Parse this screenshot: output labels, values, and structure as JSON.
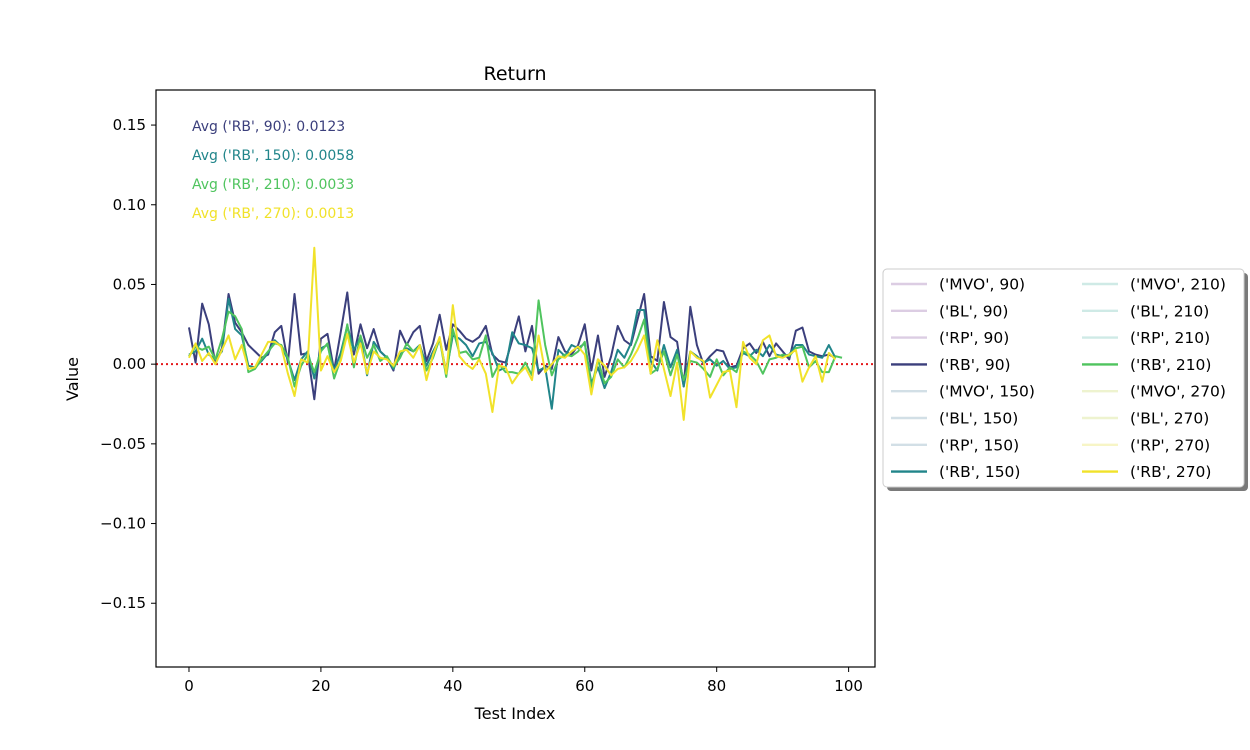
{
  "chart_data": {
    "type": "line",
    "title": "Return",
    "xlabel": "Test Index",
    "ylabel": "Value",
    "xlim": [
      -5,
      104
    ],
    "ylim": [
      -0.19,
      0.172
    ],
    "xticks": [
      0,
      20,
      40,
      60,
      80,
      100
    ],
    "xtick_labels": [
      "0",
      "20",
      "40",
      "60",
      "80",
      "100"
    ],
    "yticks": [
      0.15,
      0.1,
      0.05,
      0.0,
      -0.05,
      -0.1,
      -0.15
    ],
    "ytick_labels": [
      "0.15",
      "0.10",
      "0.05",
      "0.00",
      "−0.05",
      "−0.10",
      "−0.15"
    ],
    "grid": false,
    "legend_placement": "right, outside plot area, two columns",
    "zero_line": {
      "y": 0,
      "color": "#e41a1c",
      "style": "dotted"
    },
    "annotations": [
      {
        "text": "Avg ('RB', 90): 0.0123",
        "color": "#3b3f7c"
      },
      {
        "text": "Avg ('RB', 150): 0.0058",
        "color": "#21858a"
      },
      {
        "text": "Avg ('RB', 210): 0.0033",
        "color": "#4fc45e"
      },
      {
        "text": "Avg ('RB', 270): 0.0013",
        "color": "#f1e22a"
      }
    ],
    "legend": [
      {
        "label": "('MVO', 90)",
        "color": "#dccde3"
      },
      {
        "label": "('BL', 90)",
        "color": "#dccde3"
      },
      {
        "label": "('RP', 90)",
        "color": "#dccde3"
      },
      {
        "label": "('RB', 90)",
        "color": "#3b3f7c"
      },
      {
        "label": "('MVO', 150)",
        "color": "#d2dfe6"
      },
      {
        "label": "('BL', 150)",
        "color": "#d2dfe6"
      },
      {
        "label": "('RP', 150)",
        "color": "#d2dfe6"
      },
      {
        "label": "('RB', 150)",
        "color": "#21858a"
      },
      {
        "label": "('MVO', 210)",
        "color": "#cfeae6"
      },
      {
        "label": "('BL', 210)",
        "color": "#cfeae6"
      },
      {
        "label": "('RP', 210)",
        "color": "#cfeae6"
      },
      {
        "label": "('RB', 210)",
        "color": "#4fc45e"
      },
      {
        "label": "('MVO', 270)",
        "color": "#eef3cf"
      },
      {
        "label": "('BL', 270)",
        "color": "#eef3cf"
      },
      {
        "label": "('RP', 270)",
        "color": "#f7f5c6"
      },
      {
        "label": "('RB', 270)",
        "color": "#f1e22a"
      }
    ],
    "series": [
      {
        "name": "('RB', 90)",
        "color": "#3b3f7c",
        "values": [
          0.023,
          0.001,
          0.038,
          0.025,
          0.0,
          0.01,
          0.044,
          0.026,
          0.02,
          0.012,
          0.008,
          0.004,
          0.006,
          0.02,
          0.024,
          0.001,
          0.044,
          0.006,
          0.007,
          -0.022,
          0.016,
          0.019,
          -0.004,
          0.02,
          0.045,
          0.006,
          0.025,
          0.01,
          0.022,
          0.008,
          0.004,
          -0.004,
          0.021,
          0.012,
          0.02,
          0.024,
          0.002,
          0.013,
          0.031,
          0.009,
          0.025,
          0.021,
          0.016,
          0.014,
          0.017,
          0.024,
          0.006,
          0.002,
          0.001,
          0.015,
          0.03,
          0.008,
          0.024,
          -0.006,
          -0.001,
          -0.003,
          0.017,
          0.008,
          0.006,
          0.012,
          0.025,
          -0.004,
          0.018,
          -0.008,
          0.005,
          0.024,
          0.015,
          0.012,
          0.028,
          0.044,
          0.005,
          0.002,
          0.039,
          0.017,
          0.014,
          -0.014,
          0.036,
          0.012,
          0.0,
          0.005,
          0.009,
          0.008,
          -0.002,
          -0.001,
          0.01,
          0.013,
          0.007,
          0.014,
          0.005,
          0.013,
          0.008,
          0.003,
          0.021,
          0.023,
          0.008,
          0.006,
          0.005,
          0.006,
          0.004
        ]
      },
      {
        "name": "('RB', 150)",
        "color": "#21858a",
        "values": [
          0.006,
          0.008,
          0.016,
          0.006,
          0.003,
          0.008,
          0.041,
          0.022,
          0.018,
          -0.001,
          -0.002,
          0.002,
          0.007,
          0.015,
          0.011,
          0.003,
          -0.01,
          0.003,
          0.008,
          -0.009,
          0.01,
          0.012,
          -0.004,
          0.007,
          0.024,
          0.009,
          0.017,
          -0.007,
          0.014,
          0.008,
          0.004,
          -0.003,
          0.006,
          0.01,
          0.008,
          0.012,
          -0.001,
          0.008,
          0.016,
          -0.005,
          0.018,
          0.016,
          0.012,
          0.005,
          0.013,
          0.014,
          0.007,
          -0.004,
          -0.002,
          0.02,
          0.013,
          0.012,
          0.01,
          -0.004,
          -0.002,
          -0.028,
          0.009,
          0.005,
          0.012,
          0.01,
          0.013,
          -0.012,
          -0.002,
          -0.015,
          -0.005,
          0.009,
          0.004,
          0.013,
          0.034,
          0.034,
          0.002,
          -0.004,
          0.012,
          -0.002,
          0.009,
          -0.014,
          0.008,
          0.005,
          0.001,
          0.003,
          -0.001,
          0.002,
          -0.003,
          -0.002,
          0.007,
          0.005,
          0.009,
          0.005,
          0.012,
          0.006,
          0.005,
          0.006,
          0.012,
          0.012,
          0.006,
          0.005,
          0.004,
          0.012,
          0.004
        ]
      },
      {
        "name": "('RB', 210)",
        "color": "#4fc45e",
        "values": [
          0.005,
          0.011,
          0.009,
          0.011,
          0.003,
          0.016,
          0.033,
          0.03,
          0.022,
          -0.005,
          -0.003,
          0.003,
          0.008,
          0.013,
          0.012,
          0.004,
          -0.014,
          -0.001,
          0.006,
          -0.005,
          0.008,
          0.013,
          -0.009,
          0.003,
          0.025,
          -0.002,
          0.018,
          0.004,
          0.012,
          0.002,
          0.005,
          -0.002,
          0.004,
          0.013,
          0.008,
          0.011,
          -0.004,
          0.004,
          0.016,
          -0.008,
          0.022,
          0.007,
          0.008,
          0.003,
          0.004,
          0.018,
          -0.008,
          0.0,
          -0.005,
          -0.005,
          -0.006,
          0.001,
          -0.007,
          0.04,
          0.012,
          -0.007,
          0.003,
          0.006,
          0.005,
          0.008,
          0.014,
          -0.015,
          0.003,
          -0.012,
          -0.008,
          0.003,
          -0.002,
          0.006,
          0.016,
          0.028,
          -0.006,
          -0.003,
          0.008,
          -0.007,
          0.006,
          -0.01,
          0.002,
          0.001,
          -0.003,
          -0.008,
          0.003,
          -0.007,
          -0.002,
          -0.005,
          0.008,
          0.006,
          0.002,
          -0.006,
          0.003,
          0.004,
          0.006,
          0.005,
          0.01,
          0.011,
          -0.002,
          0.002,
          -0.005,
          -0.005,
          0.005,
          0.004
        ]
      },
      {
        "name": "('RB', 270)",
        "color": "#f1e22a",
        "values": [
          0.004,
          0.013,
          0.002,
          0.007,
          0.0,
          0.009,
          0.018,
          0.003,
          0.012,
          -0.003,
          -0.002,
          0.006,
          0.014,
          0.014,
          0.011,
          -0.006,
          -0.02,
          0.003,
          0.001,
          0.073,
          -0.004,
          0.005,
          -0.005,
          0.002,
          0.019,
          0.001,
          0.013,
          -0.006,
          0.008,
          0.004,
          0.003,
          -0.001,
          0.008,
          0.009,
          0.004,
          0.012,
          -0.01,
          0.006,
          0.017,
          -0.006,
          0.037,
          0.005,
          0.0,
          -0.003,
          0.003,
          -0.006,
          -0.03,
          -0.001,
          -0.002,
          -0.012,
          -0.006,
          -0.002,
          -0.01,
          0.018,
          -0.005,
          0.0,
          0.005,
          0.004,
          0.008,
          0.011,
          0.006,
          -0.019,
          0.003,
          -0.001,
          -0.007,
          -0.003,
          -0.002,
          0.002,
          0.009,
          0.018,
          -0.006,
          0.015,
          -0.003,
          -0.02,
          0.001,
          -0.035,
          0.008,
          0.004,
          0.002,
          -0.021,
          -0.013,
          -0.005,
          -0.004,
          -0.027,
          0.014,
          0.004,
          0.0,
          0.015,
          0.018,
          0.005,
          0.004,
          0.006,
          0.009,
          -0.011,
          -0.002,
          0.005,
          -0.011,
          0.007,
          0.003
        ]
      }
    ]
  }
}
